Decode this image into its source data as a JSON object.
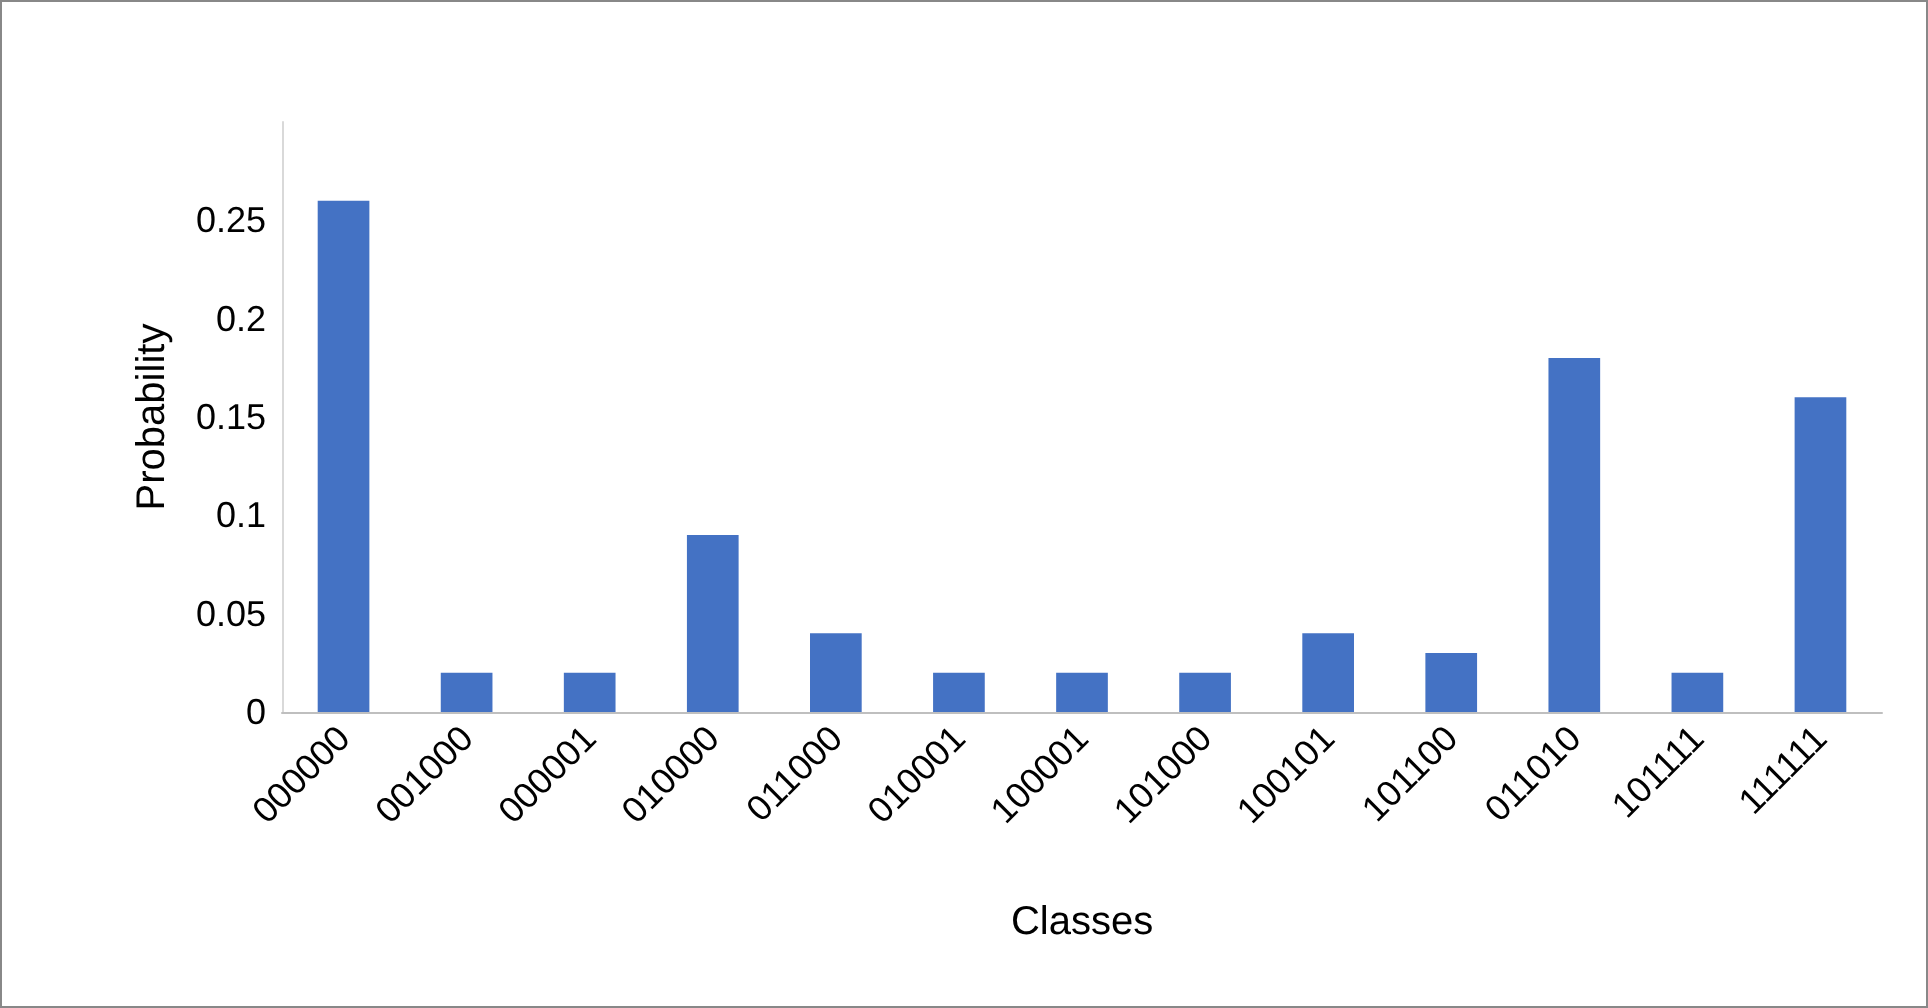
{
  "chart_data": {
    "type": "bar",
    "xlabel": "Classes",
    "ylabel": "Probability",
    "categories": [
      "000000",
      "001000",
      "000001",
      "010000",
      "011000",
      "010001",
      "100001",
      "101000",
      "100101",
      "101100",
      "011010",
      "101111",
      "111111"
    ],
    "values": [
      0.26,
      0.02,
      0.02,
      0.09,
      0.04,
      0.02,
      0.02,
      0.02,
      0.04,
      0.03,
      0.18,
      0.02,
      0.16
    ],
    "color": "#4472c4",
    "ylim": [
      0,
      0.3
    ],
    "yticks": [
      0,
      0.05,
      0.1,
      0.15,
      0.2,
      0.25
    ],
    "grid": false
  }
}
